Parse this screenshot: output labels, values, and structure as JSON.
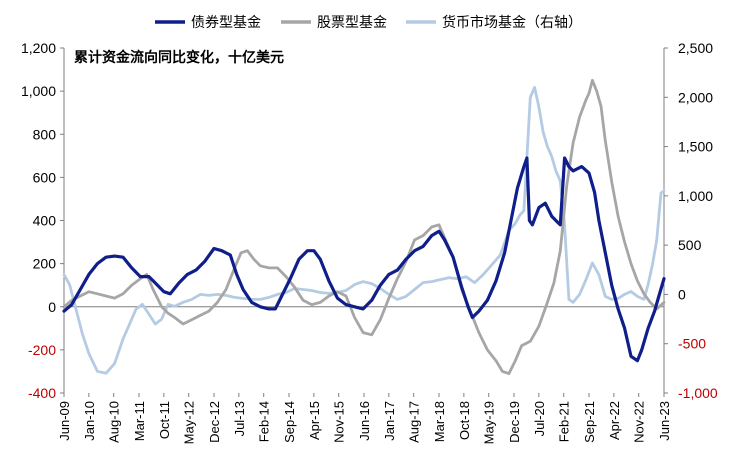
{
  "chart_data": {
    "type": "line",
    "title": "累计资金流向同比变化，十亿美元",
    "legend": {
      "placement": "top",
      "ncol": 3
    },
    "grid": false,
    "y_left": {
      "range": [
        -400,
        1200
      ],
      "ticks": [
        -400,
        -200,
        0,
        200,
        400,
        600,
        800,
        1000,
        1200
      ],
      "tick_labels": [
        "-400",
        "-200",
        "0",
        "200",
        "400",
        "600",
        "800",
        "1,000",
        "1,200"
      ]
    },
    "y_right": {
      "range": [
        -1000,
        2500
      ],
      "ticks": [
        -1000,
        -500,
        0,
        500,
        1000,
        1500,
        2000,
        2500
      ],
      "tick_labels": [
        "-1,000",
        "-500",
        "0",
        "500",
        "1,000",
        "1,500",
        "2,000",
        "2,500"
      ]
    },
    "negative_label_color": "#c00000",
    "x_range": [
      2009.42,
      2023.42
    ],
    "x_ticks": [
      {
        "t": 2009.42,
        "label": "Jun-09"
      },
      {
        "t": 2010.0,
        "label": "Jan-10"
      },
      {
        "t": 2010.58,
        "label": "Aug-10"
      },
      {
        "t": 2011.17,
        "label": "Mar-11"
      },
      {
        "t": 2011.75,
        "label": "Oct-11"
      },
      {
        "t": 2012.33,
        "label": "May-12"
      },
      {
        "t": 2012.92,
        "label": "Dec-12"
      },
      {
        "t": 2013.5,
        "label": "Jul-13"
      },
      {
        "t": 2014.08,
        "label": "Feb-14"
      },
      {
        "t": 2014.67,
        "label": "Sep-14"
      },
      {
        "t": 2015.25,
        "label": "Apr-15"
      },
      {
        "t": 2015.83,
        "label": "Nov-15"
      },
      {
        "t": 2016.42,
        "label": "Jun-16"
      },
      {
        "t": 2017.0,
        "label": "Jan-17"
      },
      {
        "t": 2017.58,
        "label": "Aug-17"
      },
      {
        "t": 2018.17,
        "label": "Mar-18"
      },
      {
        "t": 2018.75,
        "label": "Oct-18"
      },
      {
        "t": 2019.33,
        "label": "May-19"
      },
      {
        "t": 2019.92,
        "label": "Dec-19"
      },
      {
        "t": 2020.5,
        "label": "Jul-20"
      },
      {
        "t": 2021.08,
        "label": "Feb-21"
      },
      {
        "t": 2021.67,
        "label": "Sep-21"
      },
      {
        "t": 2022.25,
        "label": "Apr-22"
      },
      {
        "t": 2022.83,
        "label": "Nov-22"
      },
      {
        "t": 2023.42,
        "label": "Jun-23"
      }
    ],
    "series": [
      {
        "name": "债券型基金",
        "axis": "left",
        "color": "#0f1e8a",
        "points": [
          [
            2009.42,
            -20
          ],
          [
            2009.6,
            10
          ],
          [
            2009.8,
            80
          ],
          [
            2010.0,
            150
          ],
          [
            2010.2,
            200
          ],
          [
            2010.4,
            230
          ],
          [
            2010.6,
            235
          ],
          [
            2010.8,
            230
          ],
          [
            2011.0,
            180
          ],
          [
            2011.2,
            140
          ],
          [
            2011.4,
            140
          ],
          [
            2011.55,
            110
          ],
          [
            2011.75,
            70
          ],
          [
            2011.9,
            60
          ],
          [
            2012.1,
            110
          ],
          [
            2012.3,
            150
          ],
          [
            2012.5,
            170
          ],
          [
            2012.7,
            210
          ],
          [
            2012.92,
            270
          ],
          [
            2013.1,
            260
          ],
          [
            2013.3,
            240
          ],
          [
            2013.45,
            150
          ],
          [
            2013.6,
            80
          ],
          [
            2013.8,
            20
          ],
          [
            2014.0,
            0
          ],
          [
            2014.2,
            -10
          ],
          [
            2014.35,
            -10
          ],
          [
            2014.5,
            50
          ],
          [
            2014.7,
            130
          ],
          [
            2014.9,
            220
          ],
          [
            2015.1,
            260
          ],
          [
            2015.25,
            260
          ],
          [
            2015.4,
            220
          ],
          [
            2015.6,
            120
          ],
          [
            2015.8,
            40
          ],
          [
            2016.0,
            10
          ],
          [
            2016.2,
            0
          ],
          [
            2016.4,
            -10
          ],
          [
            2016.6,
            30
          ],
          [
            2016.8,
            100
          ],
          [
            2017.0,
            150
          ],
          [
            2017.2,
            170
          ],
          [
            2017.4,
            220
          ],
          [
            2017.6,
            260
          ],
          [
            2017.8,
            280
          ],
          [
            2018.0,
            330
          ],
          [
            2018.17,
            350
          ],
          [
            2018.3,
            310
          ],
          [
            2018.5,
            230
          ],
          [
            2018.7,
            90
          ],
          [
            2018.85,
            0
          ],
          [
            2018.95,
            -50
          ],
          [
            2019.1,
            -20
          ],
          [
            2019.3,
            30
          ],
          [
            2019.5,
            120
          ],
          [
            2019.7,
            250
          ],
          [
            2019.85,
            400
          ],
          [
            2020.0,
            550
          ],
          [
            2020.15,
            650
          ],
          [
            2020.22,
            690
          ],
          [
            2020.28,
            400
          ],
          [
            2020.35,
            380
          ],
          [
            2020.5,
            460
          ],
          [
            2020.65,
            480
          ],
          [
            2020.8,
            420
          ],
          [
            2020.95,
            390
          ],
          [
            2021.0,
            380
          ],
          [
            2021.1,
            690
          ],
          [
            2021.2,
            650
          ],
          [
            2021.3,
            630
          ],
          [
            2021.5,
            650
          ],
          [
            2021.67,
            620
          ],
          [
            2021.8,
            530
          ],
          [
            2021.9,
            400
          ],
          [
            2022.05,
            250
          ],
          [
            2022.2,
            100
          ],
          [
            2022.35,
            -10
          ],
          [
            2022.5,
            -100
          ],
          [
            2022.65,
            -230
          ],
          [
            2022.8,
            -250
          ],
          [
            2022.9,
            -200
          ],
          [
            2023.05,
            -100
          ],
          [
            2023.2,
            -20
          ],
          [
            2023.3,
            50
          ],
          [
            2023.42,
            130
          ]
        ]
      },
      {
        "name": "股票型基金",
        "axis": "left",
        "color": "#a6a6a6",
        "points": [
          [
            2009.42,
            0
          ],
          [
            2009.6,
            30
          ],
          [
            2009.8,
            50
          ],
          [
            2010.0,
            70
          ],
          [
            2010.2,
            60
          ],
          [
            2010.4,
            50
          ],
          [
            2010.6,
            40
          ],
          [
            2010.8,
            60
          ],
          [
            2011.0,
            100
          ],
          [
            2011.2,
            130
          ],
          [
            2011.35,
            150
          ],
          [
            2011.5,
            80
          ],
          [
            2011.7,
            0
          ],
          [
            2011.85,
            -30
          ],
          [
            2012.0,
            -50
          ],
          [
            2012.2,
            -80
          ],
          [
            2012.4,
            -60
          ],
          [
            2012.6,
            -40
          ],
          [
            2012.8,
            -20
          ],
          [
            2013.0,
            20
          ],
          [
            2013.2,
            80
          ],
          [
            2013.4,
            180
          ],
          [
            2013.55,
            250
          ],
          [
            2013.7,
            260
          ],
          [
            2013.85,
            220
          ],
          [
            2014.0,
            190
          ],
          [
            2014.2,
            180
          ],
          [
            2014.4,
            180
          ],
          [
            2014.6,
            140
          ],
          [
            2014.8,
            90
          ],
          [
            2015.0,
            30
          ],
          [
            2015.2,
            10
          ],
          [
            2015.4,
            20
          ],
          [
            2015.6,
            50
          ],
          [
            2015.8,
            70
          ],
          [
            2016.0,
            50
          ],
          [
            2016.2,
            -50
          ],
          [
            2016.4,
            -120
          ],
          [
            2016.6,
            -130
          ],
          [
            2016.8,
            -60
          ],
          [
            2017.0,
            40
          ],
          [
            2017.2,
            130
          ],
          [
            2017.4,
            210
          ],
          [
            2017.6,
            310
          ],
          [
            2017.8,
            330
          ],
          [
            2018.0,
            370
          ],
          [
            2018.17,
            380
          ],
          [
            2018.3,
            320
          ],
          [
            2018.5,
            230
          ],
          [
            2018.7,
            80
          ],
          [
            2018.9,
            -20
          ],
          [
            2019.1,
            -120
          ],
          [
            2019.3,
            -200
          ],
          [
            2019.5,
            -250
          ],
          [
            2019.65,
            -300
          ],
          [
            2019.8,
            -310
          ],
          [
            2019.95,
            -250
          ],
          [
            2020.1,
            -180
          ],
          [
            2020.3,
            -160
          ],
          [
            2020.5,
            -90
          ],
          [
            2020.7,
            20
          ],
          [
            2020.85,
            110
          ],
          [
            2021.0,
            260
          ],
          [
            2021.15,
            560
          ],
          [
            2021.3,
            760
          ],
          [
            2021.45,
            880
          ],
          [
            2021.6,
            960
          ],
          [
            2021.67,
            990
          ],
          [
            2021.75,
            1050
          ],
          [
            2021.85,
            1000
          ],
          [
            2021.95,
            930
          ],
          [
            2022.05,
            770
          ],
          [
            2022.2,
            580
          ],
          [
            2022.35,
            420
          ],
          [
            2022.5,
            300
          ],
          [
            2022.65,
            200
          ],
          [
            2022.8,
            120
          ],
          [
            2022.95,
            60
          ],
          [
            2023.1,
            20
          ],
          [
            2023.25,
            -10
          ],
          [
            2023.42,
            20
          ]
        ]
      },
      {
        "name": "货币市场基金（右轴）",
        "axis": "right",
        "color": "#b4cbe3",
        "points": [
          [
            2009.42,
            200
          ],
          [
            2009.55,
            100
          ],
          [
            2009.7,
            -150
          ],
          [
            2009.85,
            -400
          ],
          [
            2010.0,
            -600
          ],
          [
            2010.2,
            -780
          ],
          [
            2010.4,
            -800
          ],
          [
            2010.6,
            -700
          ],
          [
            2010.8,
            -450
          ],
          [
            2010.95,
            -300
          ],
          [
            2011.1,
            -150
          ],
          [
            2011.25,
            -100
          ],
          [
            2011.4,
            -200
          ],
          [
            2011.55,
            -300
          ],
          [
            2011.7,
            -250
          ],
          [
            2011.85,
            -100
          ],
          [
            2012.0,
            -120
          ],
          [
            2012.2,
            -80
          ],
          [
            2012.4,
            -50
          ],
          [
            2012.6,
            0
          ],
          [
            2012.8,
            -10
          ],
          [
            2013.0,
            0
          ],
          [
            2013.2,
            -10
          ],
          [
            2013.4,
            -30
          ],
          [
            2013.6,
            -40
          ],
          [
            2013.8,
            -50
          ],
          [
            2014.0,
            -50
          ],
          [
            2014.2,
            -30
          ],
          [
            2014.4,
            0
          ],
          [
            2014.6,
            20
          ],
          [
            2014.8,
            60
          ],
          [
            2015.0,
            50
          ],
          [
            2015.2,
            40
          ],
          [
            2015.4,
            20
          ],
          [
            2015.6,
            10
          ],
          [
            2015.8,
            20
          ],
          [
            2016.0,
            40
          ],
          [
            2016.2,
            100
          ],
          [
            2016.4,
            130
          ],
          [
            2016.6,
            110
          ],
          [
            2016.8,
            60
          ],
          [
            2017.0,
            0
          ],
          [
            2017.2,
            -50
          ],
          [
            2017.4,
            -20
          ],
          [
            2017.6,
            50
          ],
          [
            2017.8,
            120
          ],
          [
            2018.0,
            130
          ],
          [
            2018.2,
            150
          ],
          [
            2018.4,
            170
          ],
          [
            2018.6,
            160
          ],
          [
            2018.8,
            180
          ],
          [
            2019.0,
            120
          ],
          [
            2019.2,
            200
          ],
          [
            2019.4,
            300
          ],
          [
            2019.6,
            400
          ],
          [
            2019.8,
            650
          ],
          [
            2019.95,
            720
          ],
          [
            2020.05,
            800
          ],
          [
            2020.15,
            850
          ],
          [
            2020.3,
            2000
          ],
          [
            2020.4,
            2100
          ],
          [
            2020.5,
            1900
          ],
          [
            2020.6,
            1650
          ],
          [
            2020.7,
            1500
          ],
          [
            2020.8,
            1400
          ],
          [
            2020.9,
            1250
          ],
          [
            2021.0,
            1150
          ],
          [
            2021.1,
            700
          ],
          [
            2021.2,
            -50
          ],
          [
            2021.3,
            -80
          ],
          [
            2021.45,
            0
          ],
          [
            2021.6,
            150
          ],
          [
            2021.75,
            320
          ],
          [
            2021.9,
            200
          ],
          [
            2022.05,
            -20
          ],
          [
            2022.2,
            -50
          ],
          [
            2022.35,
            -40
          ],
          [
            2022.5,
            0
          ],
          [
            2022.65,
            30
          ],
          [
            2022.8,
            -20
          ],
          [
            2022.95,
            -50
          ],
          [
            2023.05,
            100
          ],
          [
            2023.15,
            300
          ],
          [
            2023.25,
            550
          ],
          [
            2023.35,
            1030
          ],
          [
            2023.42,
            1050
          ]
        ]
      }
    ]
  }
}
